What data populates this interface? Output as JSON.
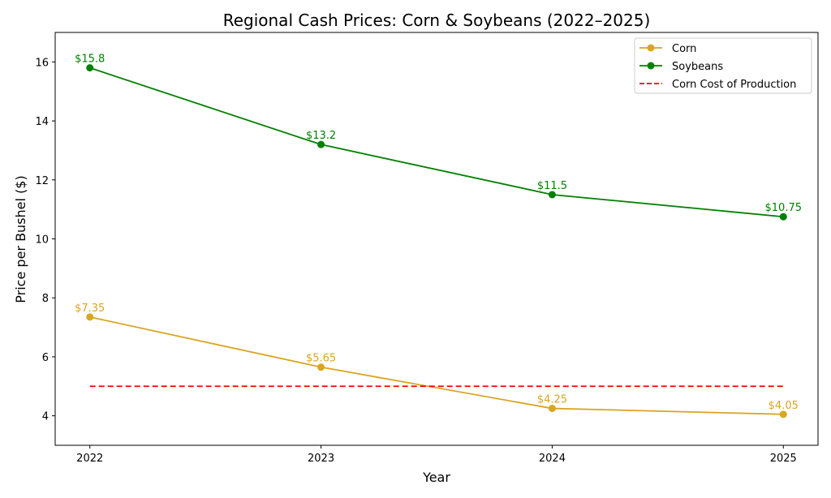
{
  "chart_data": {
    "type": "line",
    "title": "Regional Cash Prices: Corn & Soybeans (2022–2025)",
    "xlabel": "Year",
    "ylabel": "Price per Bushel ($)",
    "x": [
      2022,
      2023,
      2024,
      2025
    ],
    "xticks": [
      "2022",
      "2023",
      "2024",
      "2025"
    ],
    "yticks": [
      "4",
      "6",
      "8",
      "10",
      "12",
      "14",
      "16"
    ],
    "xlim": [
      2021.85,
      2025.15
    ],
    "ylim": [
      3,
      17
    ],
    "grid": false,
    "legend_position": "top-right",
    "series": [
      {
        "name": "Corn",
        "values": [
          7.35,
          5.65,
          4.25,
          4.05
        ],
        "labels": [
          "$7.35",
          "$5.65",
          "$4.25",
          "$4.05"
        ],
        "color": "#DAA520",
        "marker": "circle",
        "style": "solid"
      },
      {
        "name": "Soybeans",
        "values": [
          15.8,
          13.2,
          11.5,
          10.75
        ],
        "labels": [
          "$15.8",
          "$13.2",
          "$11.5",
          "$10.75"
        ],
        "color": "#008000",
        "marker": "circle",
        "style": "solid"
      },
      {
        "name": "Corn Cost of Production",
        "values": [
          5,
          5,
          5,
          5
        ],
        "color": "#FF0000",
        "marker": "none",
        "style": "dashed"
      }
    ]
  }
}
